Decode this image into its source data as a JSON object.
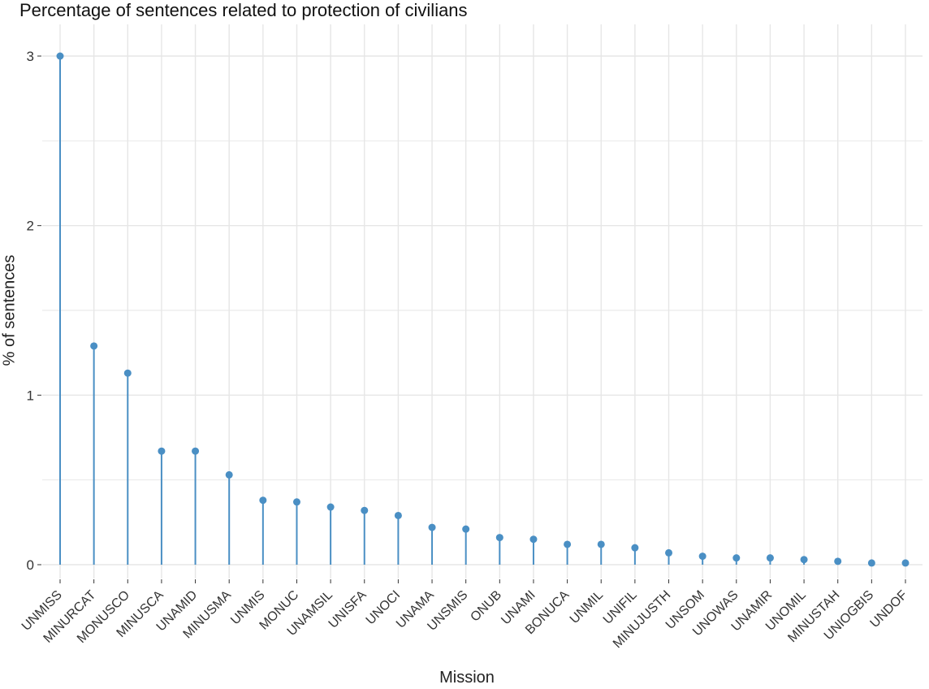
{
  "chart_data": {
    "type": "lollipop",
    "title": "Percentage of sentences related to protection of civilians",
    "xlabel": "Mission",
    "ylabel": "% of sentences",
    "ylim": [
      0,
      3.1
    ],
    "y_ticks": [
      "0",
      "1",
      "2",
      "3"
    ],
    "grid": true,
    "categories": [
      "UNMISS",
      "MINURCAT",
      "MONUSCO",
      "MINUSCA",
      "UNAMID",
      "MINUSMA",
      "UNMIS",
      "MONUC",
      "UNAMSIL",
      "UNISFA",
      "UNOCI",
      "UNAMA",
      "UNSMIS",
      "ONUB",
      "UNAMI",
      "BONUCA",
      "UNMIL",
      "UNIFIL",
      "MINUJUSTH",
      "UNSOM",
      "UNOWAS",
      "UNAMIR",
      "UNOMIL",
      "MINUSTAH",
      "UNIOGBIS",
      "UNDOF"
    ],
    "values": [
      3.0,
      1.29,
      1.13,
      0.67,
      0.67,
      0.53,
      0.38,
      0.37,
      0.34,
      0.32,
      0.29,
      0.22,
      0.21,
      0.16,
      0.15,
      0.12,
      0.12,
      0.1,
      0.07,
      0.05,
      0.04,
      0.04,
      0.03,
      0.02,
      0.01,
      0.01
    ],
    "color": "#4a8fc4"
  },
  "colors": {
    "background": "#ffffff",
    "grid": "#e6e6e6",
    "text": "#333333",
    "title": "#111111"
  }
}
